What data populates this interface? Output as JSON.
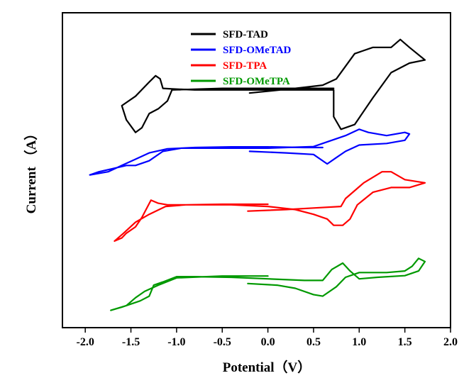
{
  "chart_data": {
    "type": "line",
    "title": "",
    "xlabel": "Potential（V）",
    "ylabel": "Current （A）",
    "xlim": [
      -2.25,
      2.0
    ],
    "ylim": [
      0,
      10
    ],
    "x_ticks": [
      -2.0,
      -1.5,
      -1.0,
      -0.5,
      0.0,
      0.5,
      1.0,
      1.5,
      2.0
    ],
    "x_tick_labels": [
      "-2.0",
      "-1.5",
      "-1.0",
      "-0.5",
      "0.0",
      "0.5",
      "1.0",
      "1.5",
      "2.0"
    ],
    "y_ticks_shown": false,
    "grid": false,
    "legend_position": "top-left",
    "series": [
      {
        "name": "SFD-TAD",
        "color": "#000000",
        "points": [
          [
            -0.2,
            7.45
          ],
          [
            0.3,
            7.6
          ],
          [
            0.6,
            7.7
          ],
          [
            0.75,
            7.9
          ],
          [
            0.95,
            8.7
          ],
          [
            1.15,
            8.9
          ],
          [
            1.35,
            8.9
          ],
          [
            1.45,
            9.15
          ],
          [
            1.55,
            8.9
          ],
          [
            1.72,
            8.5
          ],
          [
            1.55,
            8.4
          ],
          [
            1.35,
            8.1
          ],
          [
            1.15,
            7.3
          ],
          [
            0.95,
            6.45
          ],
          [
            0.8,
            6.3
          ],
          [
            0.72,
            6.7
          ],
          [
            0.72,
            7.55
          ],
          [
            0.4,
            7.55
          ],
          [
            0.0,
            7.55
          ],
          [
            -0.4,
            7.55
          ],
          [
            -0.8,
            7.55
          ],
          [
            -1.05,
            7.58
          ],
          [
            -1.15,
            7.6
          ],
          [
            -1.18,
            7.9
          ],
          [
            -1.23,
            8.0
          ],
          [
            -1.3,
            7.8
          ],
          [
            -1.45,
            7.35
          ],
          [
            -1.6,
            7.05
          ],
          [
            -1.55,
            6.6
          ],
          [
            -1.45,
            6.2
          ],
          [
            -1.38,
            6.35
          ],
          [
            -1.3,
            6.8
          ],
          [
            -1.2,
            6.95
          ],
          [
            -1.1,
            7.2
          ],
          [
            -1.05,
            7.55
          ],
          [
            -0.5,
            7.6
          ],
          [
            0.0,
            7.6
          ],
          [
            0.4,
            7.6
          ],
          [
            0.72,
            7.6
          ]
        ]
      },
      {
        "name": "SFD-OMeTAD",
        "color": "#0000ff",
        "points": [
          [
            -0.2,
            5.6
          ],
          [
            0.2,
            5.55
          ],
          [
            0.5,
            5.5
          ],
          [
            0.65,
            5.2
          ],
          [
            0.75,
            5.4
          ],
          [
            0.85,
            5.6
          ],
          [
            1.0,
            5.8
          ],
          [
            1.3,
            5.85
          ],
          [
            1.5,
            5.95
          ],
          [
            1.55,
            6.15
          ],
          [
            1.5,
            6.2
          ],
          [
            1.3,
            6.1
          ],
          [
            1.1,
            6.2
          ],
          [
            1.0,
            6.3
          ],
          [
            0.85,
            6.1
          ],
          [
            0.7,
            5.95
          ],
          [
            0.5,
            5.75
          ],
          [
            0.0,
            5.7
          ],
          [
            -0.5,
            5.7
          ],
          [
            -0.95,
            5.7
          ],
          [
            -1.15,
            5.6
          ],
          [
            -1.3,
            5.3
          ],
          [
            -1.45,
            5.15
          ],
          [
            -1.55,
            5.15
          ],
          [
            -1.7,
            5.05
          ],
          [
            -1.85,
            4.95
          ],
          [
            -1.95,
            4.85
          ],
          [
            -1.75,
            4.95
          ],
          [
            -1.6,
            5.15
          ],
          [
            -1.45,
            5.35
          ],
          [
            -1.3,
            5.55
          ],
          [
            -1.1,
            5.68
          ],
          [
            -0.8,
            5.72
          ],
          [
            -0.4,
            5.74
          ],
          [
            0.0,
            5.74
          ],
          [
            0.4,
            5.72
          ],
          [
            0.6,
            5.72
          ]
        ]
      },
      {
        "name": "SFD-TPA",
        "color": "#ff0000",
        "points": [
          [
            -0.22,
            3.7
          ],
          [
            0.2,
            3.75
          ],
          [
            0.5,
            3.8
          ],
          [
            0.8,
            3.85
          ],
          [
            0.85,
            4.1
          ],
          [
            1.05,
            4.6
          ],
          [
            1.25,
            4.95
          ],
          [
            1.35,
            4.95
          ],
          [
            1.5,
            4.7
          ],
          [
            1.72,
            4.6
          ],
          [
            1.55,
            4.45
          ],
          [
            1.35,
            4.45
          ],
          [
            1.15,
            4.3
          ],
          [
            0.98,
            3.9
          ],
          [
            0.9,
            3.45
          ],
          [
            0.82,
            3.25
          ],
          [
            0.72,
            3.25
          ],
          [
            0.65,
            3.45
          ],
          [
            0.5,
            3.6
          ],
          [
            0.3,
            3.75
          ],
          [
            0.0,
            3.85
          ],
          [
            -0.4,
            3.9
          ],
          [
            -0.8,
            3.9
          ],
          [
            -1.1,
            3.9
          ],
          [
            -1.2,
            3.95
          ],
          [
            -1.28,
            4.05
          ],
          [
            -1.38,
            3.5
          ],
          [
            -1.45,
            3.2
          ],
          [
            -1.55,
            3.0
          ],
          [
            -1.6,
            2.85
          ],
          [
            -1.68,
            2.75
          ],
          [
            -1.58,
            3.0
          ],
          [
            -1.45,
            3.35
          ],
          [
            -1.3,
            3.6
          ],
          [
            -1.12,
            3.85
          ],
          [
            -0.9,
            3.9
          ],
          [
            -0.5,
            3.92
          ],
          [
            0.0,
            3.92
          ]
        ]
      },
      {
        "name": "SFD-OMeTPA",
        "color": "#009900",
        "points": [
          [
            -0.22,
            1.4
          ],
          [
            0.1,
            1.35
          ],
          [
            0.3,
            1.25
          ],
          [
            0.5,
            1.05
          ],
          [
            0.6,
            1.0
          ],
          [
            0.75,
            1.3
          ],
          [
            0.85,
            1.6
          ],
          [
            1.0,
            1.75
          ],
          [
            1.3,
            1.75
          ],
          [
            1.5,
            1.8
          ],
          [
            1.58,
            1.95
          ],
          [
            1.65,
            2.2
          ],
          [
            1.72,
            2.1
          ],
          [
            1.65,
            1.8
          ],
          [
            1.5,
            1.65
          ],
          [
            1.2,
            1.6
          ],
          [
            1.0,
            1.55
          ],
          [
            0.9,
            1.8
          ],
          [
            0.82,
            2.05
          ],
          [
            0.7,
            1.85
          ],
          [
            0.6,
            1.5
          ],
          [
            0.4,
            1.5
          ],
          [
            0.0,
            1.55
          ],
          [
            -0.4,
            1.6
          ],
          [
            -0.8,
            1.62
          ],
          [
            -1.0,
            1.62
          ],
          [
            -1.15,
            1.45
          ],
          [
            -1.25,
            1.35
          ],
          [
            -1.3,
            1.0
          ],
          [
            -1.4,
            0.85
          ],
          [
            -1.5,
            0.75
          ],
          [
            -1.6,
            0.65
          ],
          [
            -1.72,
            0.55
          ],
          [
            -1.55,
            0.7
          ],
          [
            -1.45,
            0.95
          ],
          [
            -1.35,
            1.15
          ],
          [
            -1.2,
            1.35
          ],
          [
            -1.0,
            1.58
          ],
          [
            -0.5,
            1.64
          ],
          [
            0.0,
            1.64
          ]
        ]
      }
    ]
  }
}
